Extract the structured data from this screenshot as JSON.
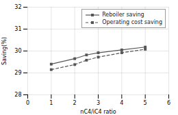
{
  "chart_data": {
    "type": "line",
    "x": [
      1,
      2,
      2.5,
      3,
      4,
      5
    ],
    "series": [
      {
        "name": "Reboiler saving",
        "color": "#555555",
        "values": [
          29.4,
          29.65,
          29.82,
          29.92,
          30.05,
          30.18
        ],
        "line_style": "solid",
        "marker": "square"
      },
      {
        "name": "Operating cost saving",
        "color": "#555555",
        "values": [
          29.15,
          29.38,
          29.58,
          29.72,
          29.92,
          30.08
        ],
        "line_style": "dashed",
        "marker": "square"
      }
    ],
    "xlabel": "nC4/iC4 ratio",
    "ylabel": "Saving(%)",
    "xlim": [
      0,
      6
    ],
    "ylim": [
      28,
      32
    ],
    "xticks": [
      0,
      1,
      2,
      3,
      4,
      5,
      6
    ],
    "yticks": [
      28,
      29,
      30,
      31,
      32
    ],
    "grid": true,
    "legend": "upper right"
  }
}
